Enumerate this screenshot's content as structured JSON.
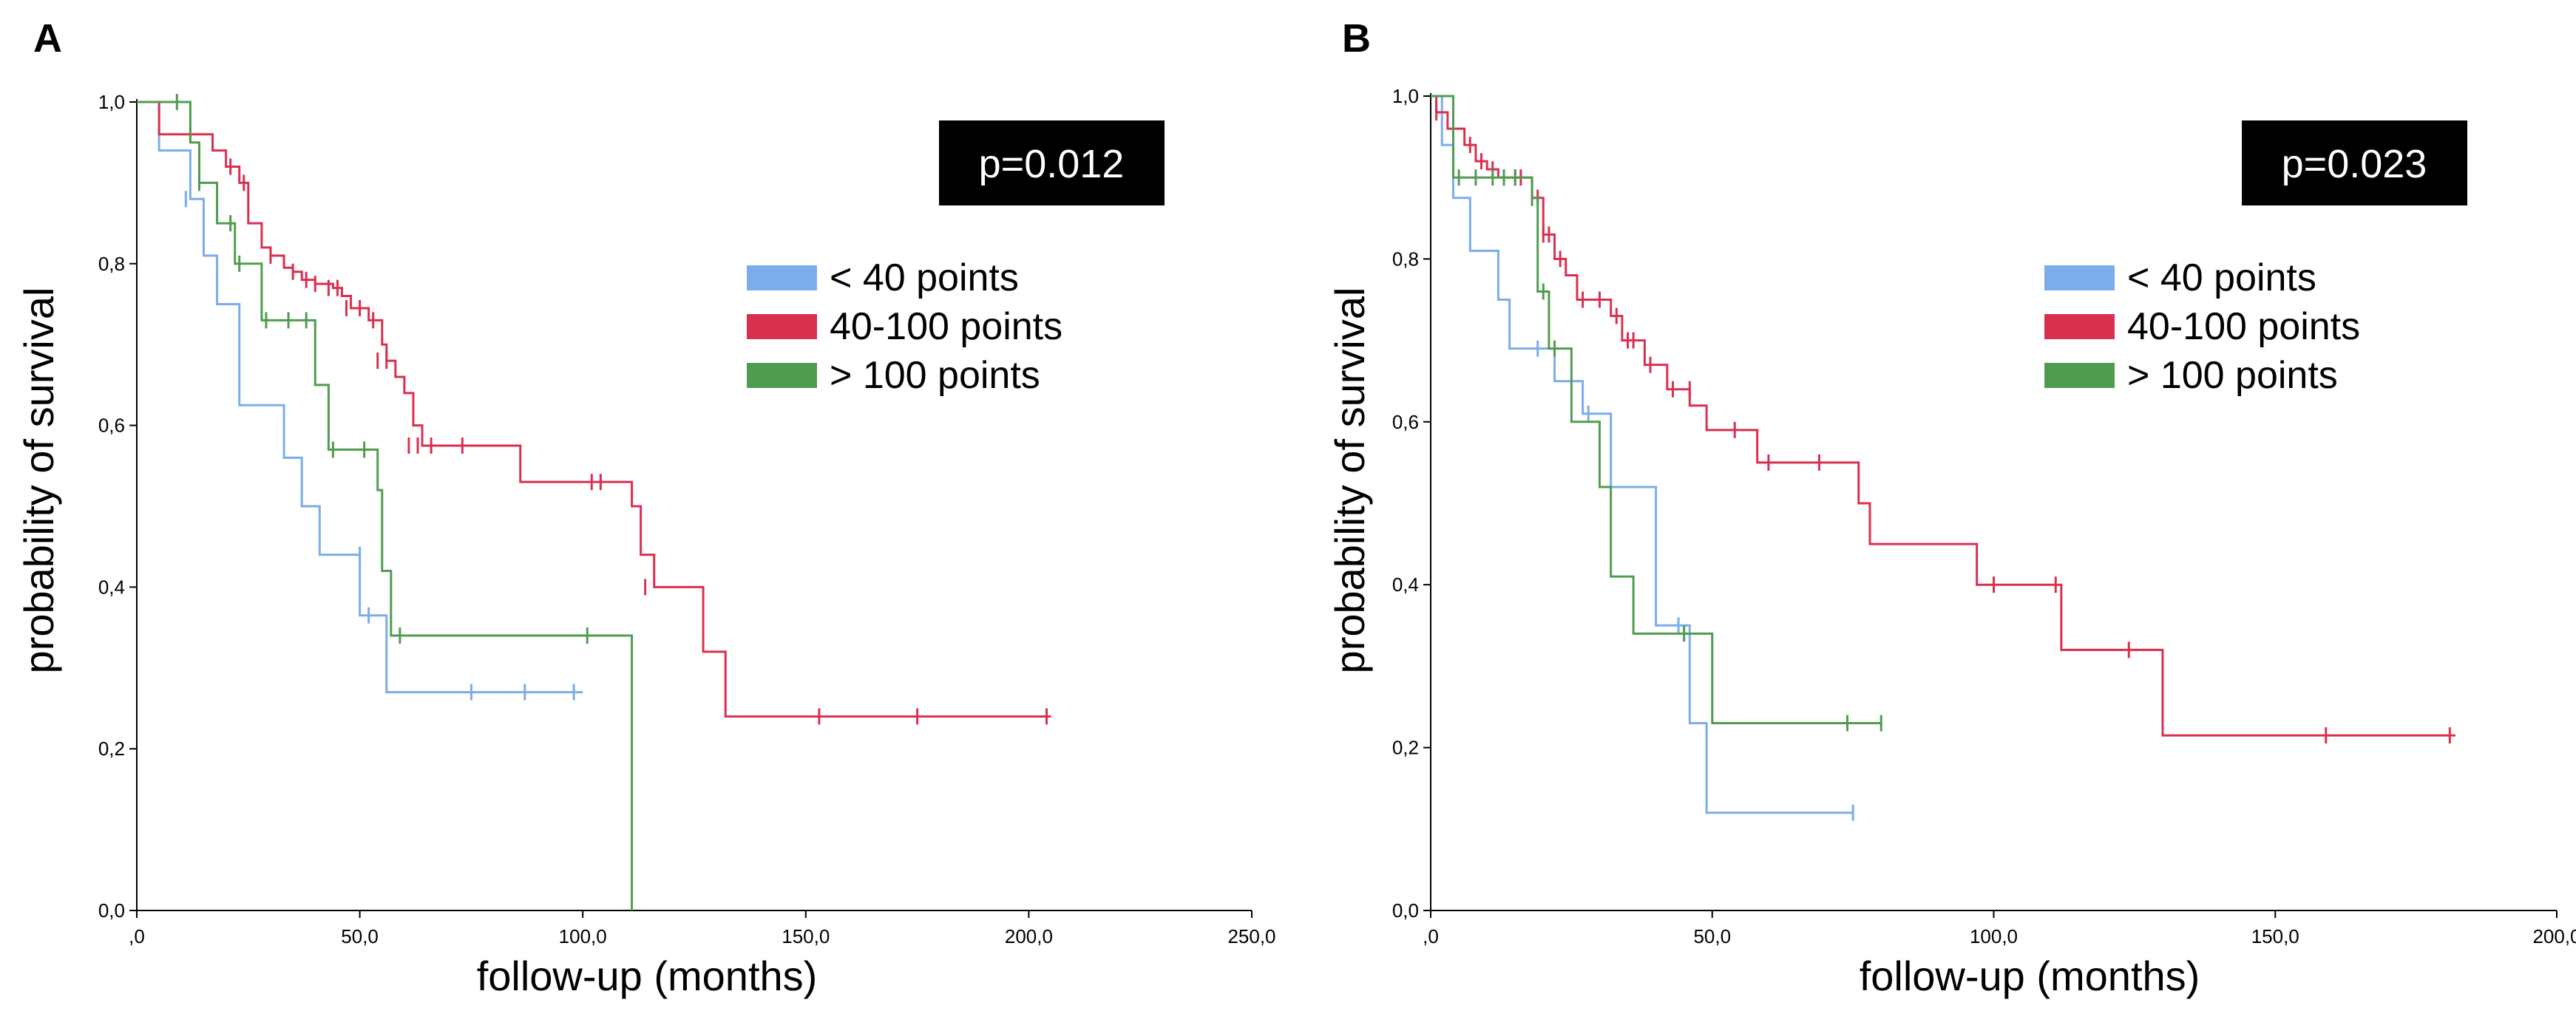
{
  "chart_data": [
    {
      "type": "line",
      "panel_label": "A",
      "xlabel": "follow-up  (months)",
      "ylabel": "probability  of  survival",
      "xlim": [
        0,
        250
      ],
      "ylim": [
        0,
        1
      ],
      "xticks": [
        ",0",
        "50,0",
        "100,0",
        "150,0",
        "200,0",
        "250,0"
      ],
      "yticks": [
        "0,0",
        "0,2",
        "0,4",
        "0,6",
        "0,8",
        "1,0"
      ],
      "annotation": "p=0.012",
      "legend_position": "upper-right",
      "series": [
        {
          "name": "< 40 points",
          "color": "#7badea",
          "steps": [
            [
              0,
              1.0
            ],
            [
              5,
              0.94
            ],
            [
              12,
              0.88
            ],
            [
              15,
              0.81
            ],
            [
              18,
              0.75
            ],
            [
              23,
              0.625
            ],
            [
              33,
              0.56
            ],
            [
              37,
              0.5
            ],
            [
              41,
              0.44
            ],
            [
              50,
              0.365
            ],
            [
              56,
              0.27
            ],
            [
              100,
              0.27
            ]
          ],
          "censored": [
            [
              11,
              0.88
            ],
            [
              50,
              0.44
            ],
            [
              52,
              0.365
            ],
            [
              75,
              0.27
            ],
            [
              87,
              0.27
            ],
            [
              98,
              0.27
            ]
          ]
        },
        {
          "name": "40-100 points",
          "color": "#d9304f",
          "steps": [
            [
              0,
              1.0
            ],
            [
              5,
              0.96
            ],
            [
              17,
              0.94
            ],
            [
              20,
              0.92
            ],
            [
              23,
              0.9
            ],
            [
              25,
              0.85
            ],
            [
              28,
              0.82
            ],
            [
              30,
              0.81
            ],
            [
              33,
              0.795
            ],
            [
              35,
              0.79
            ],
            [
              37,
              0.78
            ],
            [
              40,
              0.775
            ],
            [
              44,
              0.77
            ],
            [
              46,
              0.76
            ],
            [
              48,
              0.745
            ],
            [
              52,
              0.73
            ],
            [
              55,
              0.7
            ],
            [
              56,
              0.68
            ],
            [
              58,
              0.66
            ],
            [
              60,
              0.64
            ],
            [
              62,
              0.6
            ],
            [
              64,
              0.575
            ],
            [
              86,
              0.53
            ],
            [
              111,
              0.5
            ],
            [
              113,
              0.44
            ],
            [
              116,
              0.4
            ],
            [
              127,
              0.32
            ],
            [
              132,
              0.24
            ],
            [
              205,
              0.24
            ]
          ],
          "censored": [
            [
              12,
              0.96
            ],
            [
              21,
              0.92
            ],
            [
              24,
              0.9
            ],
            [
              30,
              0.81
            ],
            [
              35,
              0.79
            ],
            [
              38,
              0.78
            ],
            [
              40,
              0.775
            ],
            [
              43,
              0.77
            ],
            [
              45,
              0.77
            ],
            [
              47,
              0.745
            ],
            [
              50,
              0.745
            ],
            [
              53,
              0.73
            ],
            [
              54,
              0.68
            ],
            [
              56,
              0.68
            ],
            [
              61,
              0.575
            ],
            [
              63,
              0.575
            ],
            [
              66,
              0.575
            ],
            [
              73,
              0.575
            ],
            [
              102,
              0.53
            ],
            [
              104,
              0.53
            ],
            [
              114,
              0.4
            ],
            [
              153,
              0.24
            ],
            [
              175,
              0.24
            ],
            [
              204,
              0.24
            ]
          ]
        },
        {
          "name": "> 100 points",
          "color": "#519b51",
          "steps": [
            [
              0,
              1.0
            ],
            [
              12,
              0.95
            ],
            [
              14,
              0.9
            ],
            [
              18,
              0.85
            ],
            [
              22,
              0.8
            ],
            [
              28,
              0.73
            ],
            [
              40,
              0.65
            ],
            [
              43,
              0.57
            ],
            [
              54,
              0.52
            ],
            [
              55,
              0.42
            ],
            [
              57,
              0.34
            ],
            [
              111,
              0.34
            ],
            [
              111,
              0.0
            ]
          ],
          "censored": [
            [
              9,
              1.0
            ],
            [
              14,
              0.9
            ],
            [
              21,
              0.85
            ],
            [
              23,
              0.8
            ],
            [
              29,
              0.73
            ],
            [
              34,
              0.73
            ],
            [
              38,
              0.73
            ],
            [
              44,
              0.57
            ],
            [
              51,
              0.57
            ],
            [
              59,
              0.34
            ],
            [
              101,
              0.34
            ]
          ]
        }
      ]
    },
    {
      "type": "line",
      "panel_label": "B",
      "xlabel": "follow-up  (months)",
      "ylabel": "probability  of  survival",
      "xlim": [
        0,
        200
      ],
      "ylim": [
        0,
        1
      ],
      "xticks": [
        ",0",
        "50,0",
        "100,0",
        "150,0",
        "200,0"
      ],
      "yticks": [
        "0,0",
        "0,2",
        "0,4",
        "0,6",
        "0,8",
        "1,0"
      ],
      "annotation": "p=0.023",
      "legend_position": "upper-right",
      "series": [
        {
          "name": "< 40 points",
          "color": "#7badea",
          "steps": [
            [
              0,
              1.0
            ],
            [
              2,
              0.94
            ],
            [
              4,
              0.875
            ],
            [
              7,
              0.81
            ],
            [
              12,
              0.75
            ],
            [
              14,
              0.69
            ],
            [
              20,
              0.69
            ],
            [
              22,
              0.65
            ],
            [
              27,
              0.61
            ],
            [
              32,
              0.52
            ],
            [
              40,
              0.35
            ],
            [
              46,
              0.23
            ],
            [
              49,
              0.12
            ],
            [
              75,
              0.12
            ]
          ],
          "censored": [
            [
              19,
              0.69
            ],
            [
              28,
              0.61
            ],
            [
              44,
              0.35
            ],
            [
              75,
              0.12
            ]
          ]
        },
        {
          "name": "40-100 points",
          "color": "#d9304f",
          "steps": [
            [
              0,
              1.0
            ],
            [
              1,
              0.98
            ],
            [
              3,
              0.96
            ],
            [
              6,
              0.94
            ],
            [
              8,
              0.92
            ],
            [
              10,
              0.91
            ],
            [
              12,
              0.9
            ],
            [
              18,
              0.875
            ],
            [
              20,
              0.83
            ],
            [
              22,
              0.8
            ],
            [
              24,
              0.78
            ],
            [
              26,
              0.75
            ],
            [
              32,
              0.73
            ],
            [
              34,
              0.7
            ],
            [
              38,
              0.67
            ],
            [
              42,
              0.64
            ],
            [
              46,
              0.62
            ],
            [
              49,
              0.59
            ],
            [
              58,
              0.55
            ],
            [
              76,
              0.5
            ],
            [
              78,
              0.45
            ],
            [
              97,
              0.4
            ],
            [
              112,
              0.32
            ],
            [
              130,
              0.215
            ],
            [
              182,
              0.215
            ]
          ],
          "censored": [
            [
              1,
              0.98
            ],
            [
              4,
              0.96
            ],
            [
              7,
              0.94
            ],
            [
              9,
              0.92
            ],
            [
              11,
              0.91
            ],
            [
              13,
              0.9
            ],
            [
              15,
              0.9
            ],
            [
              16,
              0.9
            ],
            [
              19,
              0.875
            ],
            [
              20,
              0.83
            ],
            [
              21,
              0.83
            ],
            [
              23,
              0.8
            ],
            [
              27,
              0.75
            ],
            [
              30,
              0.75
            ],
            [
              33,
              0.73
            ],
            [
              35,
              0.7
            ],
            [
              36,
              0.7
            ],
            [
              39,
              0.67
            ],
            [
              43,
              0.64
            ],
            [
              46,
              0.64
            ],
            [
              54,
              0.59
            ],
            [
              60,
              0.55
            ],
            [
              69,
              0.55
            ],
            [
              100,
              0.4
            ],
            [
              111,
              0.4
            ],
            [
              124,
              0.32
            ],
            [
              159,
              0.215
            ],
            [
              181,
              0.215
            ]
          ]
        },
        {
          "name": "> 100 points",
          "color": "#519b51",
          "steps": [
            [
              0,
              1.0
            ],
            [
              4,
              0.9
            ],
            [
              18,
              0.875
            ],
            [
              19,
              0.76
            ],
            [
              21,
              0.69
            ],
            [
              25,
              0.6
            ],
            [
              30,
              0.52
            ],
            [
              32,
              0.41
            ],
            [
              36,
              0.34
            ],
            [
              50,
              0.23
            ],
            [
              80,
              0.23
            ]
          ],
          "censored": [
            [
              5,
              0.9
            ],
            [
              8,
              0.9
            ],
            [
              11,
              0.9
            ],
            [
              13,
              0.9
            ],
            [
              15,
              0.9
            ],
            [
              18,
              0.875
            ],
            [
              20,
              0.76
            ],
            [
              22,
              0.69
            ],
            [
              45,
              0.34
            ],
            [
              74,
              0.23
            ],
            [
              80,
              0.23
            ]
          ]
        }
      ]
    }
  ]
}
